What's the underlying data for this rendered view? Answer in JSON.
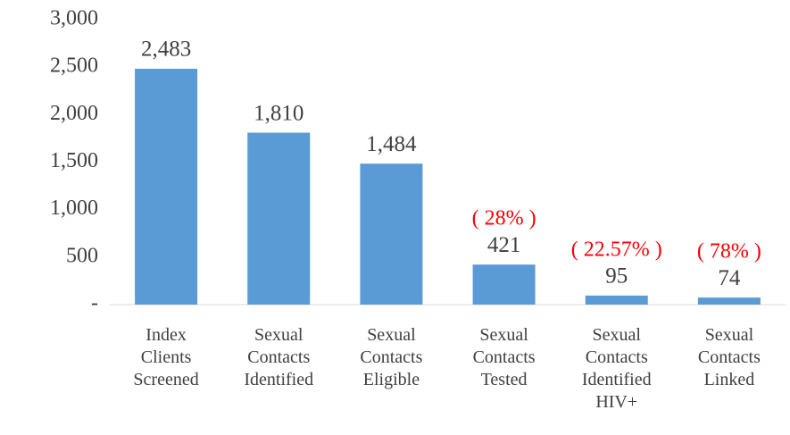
{
  "chart_data": {
    "type": "bar",
    "categories": [
      "Index Clients Screened",
      "Sexual Contacts Identified",
      "Sexual Contacts Eligible",
      "Sexual Contacts Tested",
      "Sexual Contacts Identified HIV+",
      "Sexual Contacts Linked"
    ],
    "values": [
      2483,
      1810,
      1484,
      421,
      95,
      74
    ],
    "value_labels": [
      "2,483",
      "1,810",
      "1,484",
      "421",
      "95",
      "74"
    ],
    "color": "#5b9bd5",
    "ylim": [
      0,
      3000
    ],
    "yticks": [
      {
        "value": 0,
        "label": "-"
      },
      500,
      {
        "value": 1000,
        "label": "1,000"
      },
      {
        "value": 1500,
        "label": "1,500"
      },
      {
        "value": 2000,
        "label": "2,000"
      },
      {
        "value": 2500,
        "label": "2,500"
      },
      {
        "value": 3000,
        "label": "3,000"
      }
    ],
    "grid": false,
    "annotations": [
      {
        "text": "( 28% )",
        "category": "Sexual Contacts Tested",
        "color": "#ff0000"
      },
      {
        "text": "( 22.57% )",
        "category": "Sexual Contacts Identified HIV+",
        "color": "#ff0000"
      },
      {
        "text": "( 78% )",
        "category": "Sexual Contacts Linked",
        "color": "#ff0000"
      }
    ]
  }
}
